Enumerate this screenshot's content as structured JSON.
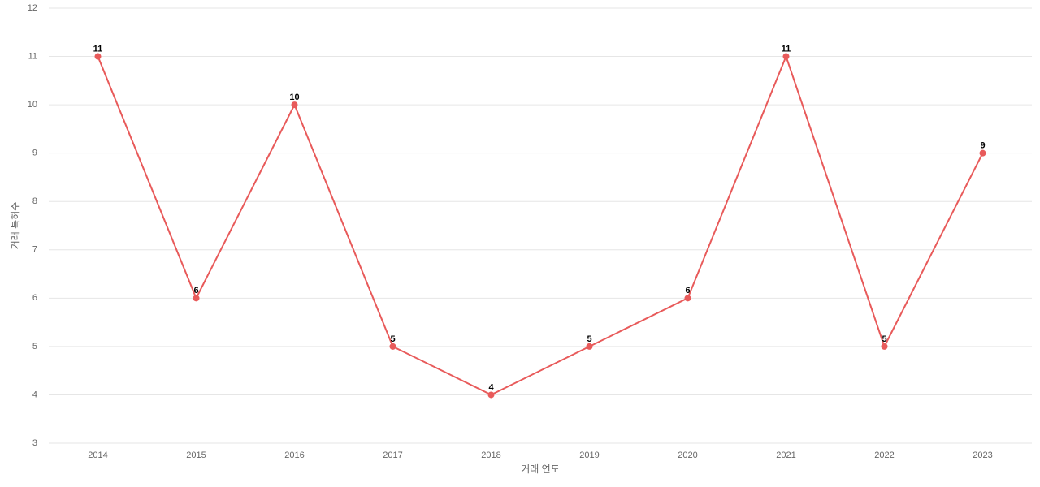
{
  "chart_data": {
    "type": "line",
    "x_label": "거래 연도",
    "y_label": "거래 특허수",
    "categories": [
      "2014",
      "2015",
      "2016",
      "2017",
      "2018",
      "2019",
      "2020",
      "2021",
      "2022",
      "2023"
    ],
    "values": [
      11,
      6,
      10,
      5,
      4,
      5,
      6,
      11,
      5,
      9
    ],
    "color": "#e85a5a",
    "ylim": [
      3,
      12
    ],
    "yticks": [
      3,
      4,
      5,
      6,
      7,
      8,
      9,
      10,
      11,
      12
    ],
    "grid": true
  }
}
